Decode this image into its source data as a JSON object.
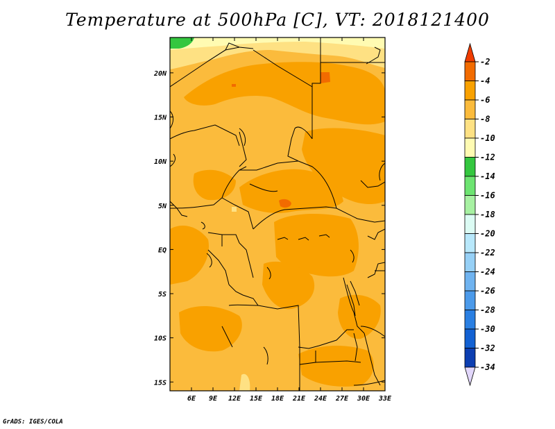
{
  "title": "Temperature at 500hPa [C], VT: 2018121400",
  "credit": "GrADS: IGES/COLA",
  "map": {
    "lon_range": [
      3,
      33
    ],
    "lat_range": [
      -16,
      24
    ],
    "x_ticks": [
      "6E",
      "9E",
      "12E",
      "15E",
      "18E",
      "21E",
      "24E",
      "27E",
      "30E",
      "33E"
    ],
    "x_tick_values": [
      6,
      9,
      12,
      15,
      18,
      21,
      24,
      27,
      30,
      33
    ],
    "y_ticks": [
      "20N",
      "15N",
      "10N",
      "5N",
      "EQ",
      "5S",
      "10S",
      "15S"
    ],
    "y_tick_values": [
      20,
      15,
      10,
      5,
      0,
      -5,
      -10,
      -15
    ],
    "base_field_color": "#fbbb3c",
    "warm_field_color": "#f9a100",
    "hot_spot_color": "#f26b00"
  },
  "colorbar": {
    "labels": [
      "-2",
      "-4",
      "-6",
      "-8",
      "-10",
      "-12",
      "-14",
      "-16",
      "-18",
      "-20",
      "-22",
      "-24",
      "-26",
      "-28",
      "-30",
      "-32",
      "-34"
    ],
    "colors": [
      "#f03c00",
      "#f26b00",
      "#f9a100",
      "#fbbb3c",
      "#fee183",
      "#fffbb2",
      "#34c73f",
      "#6de471",
      "#a7f1a2",
      "#dcfcf4",
      "#b8e8fb",
      "#96d0f6",
      "#6fb3f0",
      "#4b9aea",
      "#2a7fe2",
      "#1261d3",
      "#0c3eb1",
      "#0a1674",
      "#e2d7fb"
    ]
  }
}
